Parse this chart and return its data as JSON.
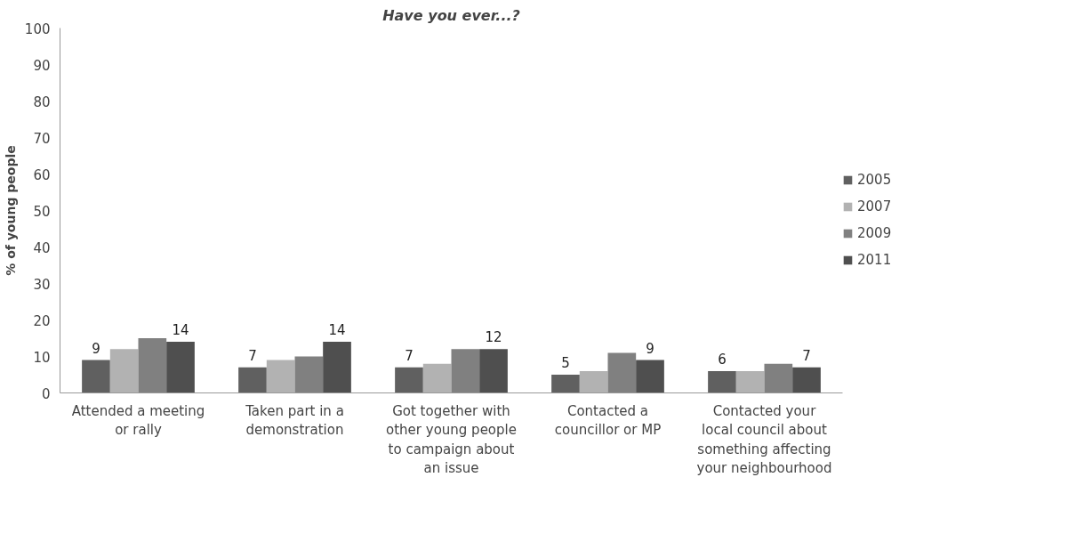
{
  "chart_data": {
    "type": "bar",
    "title": "Have you ever...?",
    "ylabel": "% of young people",
    "categories": [
      "Attended a meeting or rally",
      "Taken part in a demonstration",
      "Got together with other young people to campaign about an issue",
      "Contacted a councillor or MP",
      "Contacted your local council about something affecting your neighbourhood"
    ],
    "series": [
      {
        "name": "2005",
        "color": "#606060",
        "values": [
          9,
          7,
          7,
          5,
          6
        ],
        "value_labels": [
          "9",
          "7",
          "7",
          "5",
          "6"
        ]
      },
      {
        "name": "2007",
        "color": "#b2b2b2",
        "values": [
          12,
          9,
          8,
          6,
          6
        ]
      },
      {
        "name": "2009",
        "color": "#808080",
        "values": [
          15,
          10,
          12,
          11,
          8
        ]
      },
      {
        "name": "2011",
        "color": "#4f4f4f",
        "values": [
          14,
          14,
          12,
          9,
          7
        ],
        "value_labels": [
          "14",
          "14",
          "12",
          "9",
          "7"
        ]
      }
    ],
    "ylim": [
      0,
      100
    ],
    "yticks": [
      0,
      10,
      20,
      30,
      40,
      50,
      60,
      70,
      80,
      90,
      100
    ],
    "grid": false,
    "legend": "right"
  }
}
